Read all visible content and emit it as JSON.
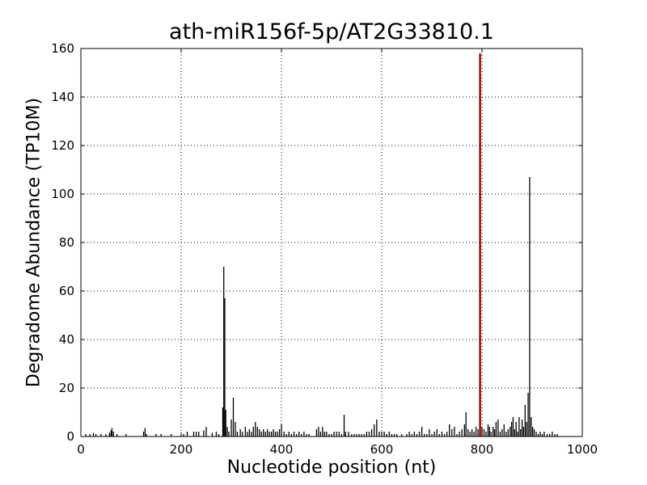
{
  "chart_data": {
    "type": "bar",
    "title": "ath-miR156f-5p/AT2G33810.1",
    "xlabel": "Nucleotide position (nt)",
    "ylabel": "Degradome Abundance (TP10M)",
    "xlim": [
      0,
      1000
    ],
    "ylim": [
      0,
      160
    ],
    "xticks": [
      0,
      200,
      400,
      600,
      800,
      1000
    ],
    "yticks": [
      0,
      20,
      40,
      60,
      80,
      100,
      120,
      140,
      160
    ],
    "grid": true,
    "bar_color": "#000000",
    "highlight_color": "#ff0000",
    "highlight": {
      "x": 796,
      "y": 158
    },
    "points": [
      [
        10,
        1
      ],
      [
        18,
        1
      ],
      [
        25,
        1.5
      ],
      [
        30,
        1
      ],
      [
        40,
        1
      ],
      [
        50,
        1
      ],
      [
        57,
        1.5
      ],
      [
        60,
        2.5
      ],
      [
        62,
        3.5
      ],
      [
        65,
        2
      ],
      [
        72,
        1
      ],
      [
        90,
        1
      ],
      [
        125,
        2
      ],
      [
        128,
        3.5
      ],
      [
        131,
        1
      ],
      [
        150,
        1
      ],
      [
        160,
        1
      ],
      [
        180,
        1
      ],
      [
        205,
        1
      ],
      [
        212,
        2
      ],
      [
        225,
        2
      ],
      [
        230,
        2
      ],
      [
        235,
        2
      ],
      [
        245,
        2.5
      ],
      [
        250,
        4
      ],
      [
        262,
        1.5
      ],
      [
        270,
        2
      ],
      [
        275,
        1
      ],
      [
        283,
        12
      ],
      [
        285,
        70
      ],
      [
        287,
        57
      ],
      [
        289,
        11
      ],
      [
        292,
        4
      ],
      [
        295,
        2
      ],
      [
        300,
        7
      ],
      [
        304,
        16
      ],
      [
        308,
        6
      ],
      [
        312,
        2
      ],
      [
        318,
        3
      ],
      [
        322,
        2
      ],
      [
        328,
        4
      ],
      [
        332,
        2
      ],
      [
        336,
        3
      ],
      [
        340,
        2
      ],
      [
        344,
        4
      ],
      [
        348,
        6
      ],
      [
        352,
        4
      ],
      [
        356,
        3
      ],
      [
        360,
        2
      ],
      [
        364,
        3
      ],
      [
        368,
        2
      ],
      [
        372,
        3
      ],
      [
        376,
        2
      ],
      [
        380,
        2
      ],
      [
        384,
        3
      ],
      [
        388,
        2
      ],
      [
        392,
        2
      ],
      [
        396,
        3
      ],
      [
        400,
        5
      ],
      [
        405,
        2
      ],
      [
        410,
        1
      ],
      [
        415,
        2
      ],
      [
        420,
        1
      ],
      [
        425,
        2
      ],
      [
        430,
        1
      ],
      [
        435,
        2
      ],
      [
        440,
        1
      ],
      [
        445,
        2
      ],
      [
        450,
        1
      ],
      [
        455,
        1
      ],
      [
        470,
        3
      ],
      [
        474,
        4
      ],
      [
        478,
        2
      ],
      [
        482,
        4
      ],
      [
        486,
        2
      ],
      [
        490,
        2
      ],
      [
        495,
        1
      ],
      [
        500,
        1
      ],
      [
        505,
        2
      ],
      [
        510,
        2
      ],
      [
        515,
        2
      ],
      [
        520,
        1
      ],
      [
        525,
        9
      ],
      [
        528,
        2
      ],
      [
        534,
        2
      ],
      [
        540,
        1
      ],
      [
        545,
        1
      ],
      [
        550,
        1
      ],
      [
        555,
        1
      ],
      [
        560,
        1
      ],
      [
        565,
        1
      ],
      [
        570,
        2
      ],
      [
        575,
        2
      ],
      [
        580,
        3
      ],
      [
        585,
        5
      ],
      [
        590,
        7
      ],
      [
        595,
        2
      ],
      [
        600,
        2
      ],
      [
        605,
        2
      ],
      [
        610,
        1
      ],
      [
        615,
        2
      ],
      [
        620,
        1
      ],
      [
        625,
        1
      ],
      [
        630,
        1
      ],
      [
        640,
        1
      ],
      [
        650,
        1
      ],
      [
        655,
        2
      ],
      [
        660,
        1
      ],
      [
        665,
        2
      ],
      [
        670,
        1
      ],
      [
        675,
        2
      ],
      [
        680,
        4
      ],
      [
        685,
        1
      ],
      [
        690,
        1
      ],
      [
        695,
        3
      ],
      [
        700,
        1
      ],
      [
        705,
        2
      ],
      [
        710,
        3
      ],
      [
        715,
        1
      ],
      [
        720,
        2
      ],
      [
        725,
        1
      ],
      [
        730,
        2
      ],
      [
        735,
        5
      ],
      [
        740,
        3
      ],
      [
        745,
        4
      ],
      [
        750,
        1
      ],
      [
        755,
        2
      ],
      [
        760,
        3
      ],
      [
        765,
        5
      ],
      [
        768,
        10
      ],
      [
        772,
        3
      ],
      [
        776,
        2
      ],
      [
        780,
        3
      ],
      [
        784,
        2
      ],
      [
        788,
        4
      ],
      [
        792,
        3
      ],
      [
        800,
        4
      ],
      [
        804,
        3
      ],
      [
        808,
        2
      ],
      [
        812,
        5
      ],
      [
        815,
        4
      ],
      [
        818,
        2
      ],
      [
        822,
        4
      ],
      [
        825,
        3
      ],
      [
        828,
        6
      ],
      [
        832,
        7
      ],
      [
        836,
        2
      ],
      [
        840,
        3
      ],
      [
        844,
        5
      ],
      [
        848,
        2
      ],
      [
        852,
        3
      ],
      [
        856,
        4
      ],
      [
        859,
        6
      ],
      [
        862,
        8
      ],
      [
        865,
        3
      ],
      [
        868,
        6
      ],
      [
        871,
        2
      ],
      [
        874,
        8
      ],
      [
        877,
        3
      ],
      [
        880,
        7
      ],
      [
        883,
        4
      ],
      [
        886,
        13
      ],
      [
        889,
        6
      ],
      [
        892,
        18
      ],
      [
        895,
        107
      ],
      [
        898,
        8
      ],
      [
        901,
        4
      ],
      [
        904,
        3
      ],
      [
        908,
        2
      ],
      [
        912,
        1
      ],
      [
        916,
        2
      ],
      [
        920,
        1
      ],
      [
        924,
        2
      ],
      [
        930,
        1
      ],
      [
        935,
        1
      ],
      [
        940,
        2
      ],
      [
        945,
        1
      ],
      [
        950,
        1
      ]
    ]
  }
}
